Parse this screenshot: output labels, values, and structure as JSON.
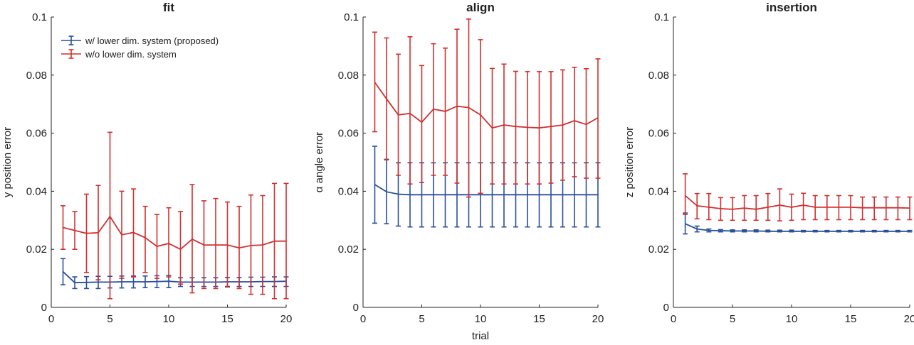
{
  "chart_data": [
    {
      "type": "line",
      "title": "fit",
      "xlabel": "",
      "ylabel": "y position error",
      "xlim": [
        0,
        20
      ],
      "ylim": [
        0,
        0.1
      ],
      "xticks": [
        "0",
        "5",
        "10",
        "15",
        "20"
      ],
      "yticks": [
        "0",
        "0.02",
        "0.04",
        "0.06",
        "0.08",
        "0.1"
      ],
      "grid": false,
      "legend": {
        "placement": "top-left",
        "entries": [
          "w/ lower dim. system (proposed)",
          "w/o lower dim. system"
        ]
      },
      "x": [
        1,
        2,
        3,
        4,
        5,
        6,
        7,
        8,
        9,
        10,
        11,
        12,
        13,
        14,
        15,
        16,
        17,
        18,
        19,
        20
      ],
      "series": [
        {
          "name": "w/ lower dim. system (proposed)",
          "color": "#2a4f9a",
          "values": [
            0.0123,
            0.0085,
            0.0086,
            0.0087,
            0.0087,
            0.0088,
            0.0088,
            0.0088,
            0.0089,
            0.009,
            0.0087,
            0.0087,
            0.0087,
            0.0087,
            0.0088,
            0.0088,
            0.0088,
            0.0089,
            0.0089,
            0.009
          ],
          "err_low": [
            0.0078,
            0.0065,
            0.0065,
            0.0065,
            0.0067,
            0.0067,
            0.0067,
            0.0068,
            0.0068,
            0.0068,
            0.0072,
            0.0072,
            0.0072,
            0.0072,
            0.0072,
            0.0072,
            0.0072,
            0.0072,
            0.0072,
            0.0072
          ],
          "err_high": [
            0.0168,
            0.0105,
            0.0106,
            0.0107,
            0.0107,
            0.0108,
            0.0108,
            0.0108,
            0.0109,
            0.011,
            0.0102,
            0.0102,
            0.0102,
            0.0102,
            0.0103,
            0.0103,
            0.0104,
            0.0104,
            0.0105,
            0.0105
          ]
        },
        {
          "name": "w/o lower dim. system",
          "color": "#d03030",
          "values": [
            0.0275,
            0.0265,
            0.0255,
            0.0257,
            0.0313,
            0.025,
            0.0258,
            0.024,
            0.021,
            0.022,
            0.02,
            0.0235,
            0.0215,
            0.0215,
            0.0215,
            0.0205,
            0.0213,
            0.0215,
            0.0228,
            0.0228
          ],
          "err_low": [
            0.02,
            0.02,
            0.012,
            0.0095,
            0.003,
            0.01,
            0.0105,
            0.012,
            0.01,
            0.0105,
            0.008,
            0.005,
            0.0065,
            0.0065,
            0.007,
            0.0065,
            0.0045,
            0.0045,
            0.003,
            0.003
          ],
          "err_high": [
            0.035,
            0.033,
            0.039,
            0.042,
            0.0603,
            0.04,
            0.0408,
            0.0348,
            0.032,
            0.0343,
            0.033,
            0.0423,
            0.0367,
            0.0375,
            0.0363,
            0.0348,
            0.0387,
            0.0385,
            0.0427,
            0.0427
          ]
        }
      ]
    },
    {
      "type": "line",
      "title": "align",
      "xlabel": "trial",
      "ylabel": "α angle error",
      "xlim": [
        0,
        20
      ],
      "ylim": [
        0,
        0.1
      ],
      "xticks": [
        "0",
        "5",
        "10",
        "15",
        "20"
      ],
      "yticks": [
        "0",
        "0.02",
        "0.04",
        "0.06",
        "0.08",
        "0.1"
      ],
      "grid": false,
      "x": [
        1,
        2,
        3,
        4,
        5,
        6,
        7,
        8,
        9,
        10,
        11,
        12,
        13,
        14,
        15,
        16,
        17,
        18,
        19,
        20
      ],
      "series": [
        {
          "name": "w/ lower dim. system (proposed)",
          "color": "#2a4f9a",
          "values": [
            0.0423,
            0.0398,
            0.039,
            0.0388,
            0.0388,
            0.0388,
            0.0388,
            0.0388,
            0.0388,
            0.0388,
            0.0388,
            0.0388,
            0.0388,
            0.0388,
            0.0388,
            0.0388,
            0.0388,
            0.0388,
            0.0388,
            0.0388
          ],
          "err_low": [
            0.029,
            0.0288,
            0.028,
            0.0277,
            0.0277,
            0.0277,
            0.0277,
            0.0277,
            0.0277,
            0.0277,
            0.0277,
            0.0277,
            0.0277,
            0.0277,
            0.0277,
            0.0277,
            0.0277,
            0.0277,
            0.0277,
            0.0277
          ],
          "err_high": [
            0.0555,
            0.051,
            0.0498,
            0.0498,
            0.0498,
            0.0498,
            0.0498,
            0.0498,
            0.0498,
            0.0498,
            0.0498,
            0.0498,
            0.0498,
            0.0498,
            0.0498,
            0.0498,
            0.0498,
            0.0498,
            0.0498,
            0.0498
          ]
        },
        {
          "name": "w/o lower dim. system",
          "color": "#d03030",
          "values": [
            0.0775,
            0.0718,
            0.0663,
            0.0668,
            0.0638,
            0.0683,
            0.0675,
            0.0693,
            0.0688,
            0.0663,
            0.0618,
            0.0628,
            0.0623,
            0.062,
            0.0618,
            0.0623,
            0.0628,
            0.0643,
            0.063,
            0.0653
          ],
          "err_low": [
            0.0605,
            0.0508,
            0.0455,
            0.0425,
            0.043,
            0.0455,
            0.0455,
            0.0428,
            0.038,
            0.0393,
            0.0425,
            0.0425,
            0.0425,
            0.0425,
            0.0425,
            0.0428,
            0.0438,
            0.045,
            0.0445,
            0.0445
          ],
          "err_high": [
            0.0948,
            0.0928,
            0.0872,
            0.0932,
            0.0833,
            0.0908,
            0.0893,
            0.0958,
            0.0993,
            0.0922,
            0.0823,
            0.0838,
            0.0813,
            0.0812,
            0.0812,
            0.0812,
            0.0818,
            0.0827,
            0.0822,
            0.0856
          ]
        }
      ]
    },
    {
      "type": "line",
      "title": "insertion",
      "xlabel": "",
      "ylabel": "z position error",
      "xlim": [
        0,
        20
      ],
      "ylim": [
        0,
        0.1
      ],
      "xticks": [
        "0",
        "5",
        "10",
        "15",
        "20"
      ],
      "yticks": [
        "0",
        "0.02",
        "0.04",
        "0.06",
        "0.08",
        "0.1"
      ],
      "grid": false,
      "x": [
        1,
        2,
        3,
        4,
        5,
        6,
        7,
        8,
        9,
        10,
        11,
        12,
        13,
        14,
        15,
        16,
        17,
        18,
        19,
        20
      ],
      "series": [
        {
          "name": "w/ lower dim. system (proposed)",
          "color": "#2a4f9a",
          "values": [
            0.0288,
            0.027,
            0.0265,
            0.0264,
            0.0263,
            0.0263,
            0.0263,
            0.0262,
            0.0262,
            0.0262,
            0.0262,
            0.0262,
            0.0262,
            0.0262,
            0.0262,
            0.0262,
            0.0262,
            0.0262,
            0.0262,
            0.0262
          ],
          "err_low": [
            0.0253,
            0.026,
            0.026,
            0.026,
            0.026,
            0.026,
            0.026,
            0.026,
            0.026,
            0.026,
            0.026,
            0.026,
            0.026,
            0.026,
            0.026,
            0.026,
            0.026,
            0.026,
            0.026,
            0.026
          ],
          "err_high": [
            0.0325,
            0.028,
            0.027,
            0.0268,
            0.0267,
            0.0267,
            0.0267,
            0.0266,
            0.0266,
            0.0266,
            0.0265,
            0.0265,
            0.0265,
            0.0265,
            0.0265,
            0.0265,
            0.0265,
            0.0265,
            0.0265,
            0.0265
          ]
        },
        {
          "name": "w/o lower dim. system",
          "color": "#d03030",
          "values": [
            0.0385,
            0.035,
            0.0345,
            0.034,
            0.0338,
            0.0342,
            0.0338,
            0.0345,
            0.0352,
            0.0345,
            0.0352,
            0.0345,
            0.0345,
            0.0345,
            0.0345,
            0.0343,
            0.0343,
            0.0343,
            0.0343,
            0.0342
          ],
          "err_low": [
            0.032,
            0.0305,
            0.0302,
            0.03,
            0.03,
            0.03,
            0.03,
            0.03,
            0.0298,
            0.03,
            0.0302,
            0.0302,
            0.0302,
            0.0302,
            0.0302,
            0.0302,
            0.0302,
            0.0302,
            0.0302,
            0.0302
          ],
          "err_high": [
            0.046,
            0.0392,
            0.0392,
            0.0378,
            0.0378,
            0.0385,
            0.0385,
            0.0392,
            0.0408,
            0.039,
            0.0393,
            0.0385,
            0.0385,
            0.0385,
            0.0385,
            0.038,
            0.038,
            0.038,
            0.038,
            0.038
          ]
        }
      ]
    }
  ]
}
